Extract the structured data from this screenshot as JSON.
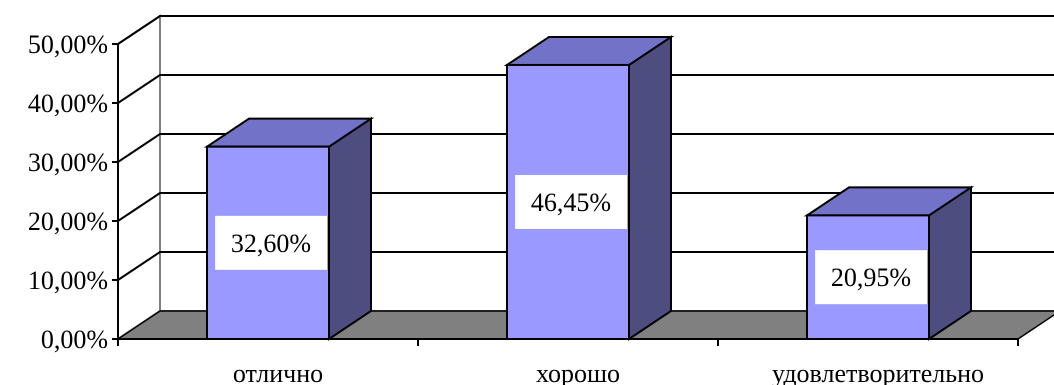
{
  "chart_data": {
    "type": "bar",
    "three_d": true,
    "categories": [
      "отлично",
      "хорошо",
      "удовлетворительно"
    ],
    "values": [
      32.6,
      46.45,
      20.95
    ],
    "data_labels": [
      "32,60%",
      "46,45%",
      "20,95%"
    ],
    "ylim": [
      0,
      50
    ],
    "y_ticks": [
      0,
      10,
      20,
      30,
      40,
      50
    ],
    "y_tick_labels": [
      "0,00%",
      "10,00%",
      "20,00%",
      "30,00%",
      "40,00%",
      "50,00%"
    ],
    "title": "",
    "xlabel": "",
    "ylabel": "",
    "grid": true,
    "legend": "none",
    "colors": {
      "bar_front": "#9999ff",
      "bar_side": "#4d4d80",
      "bar_top": "#7272c8",
      "floor": "#808080",
      "wall": "#ffffff",
      "gridline": "#000000"
    }
  }
}
